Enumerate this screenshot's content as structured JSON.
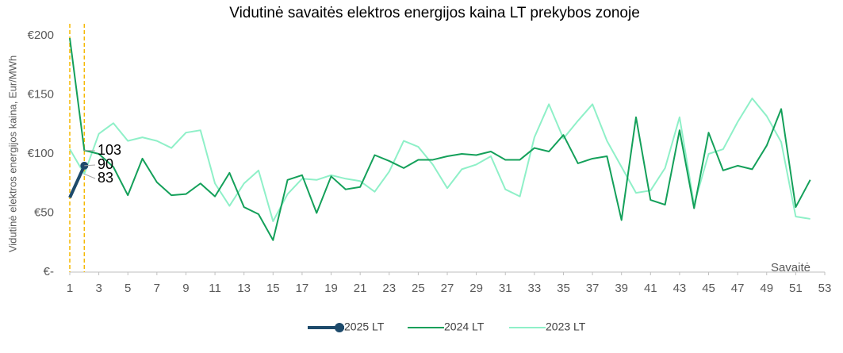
{
  "chart_data": {
    "type": "line",
    "title": "Vidutinė savaitės elektros energijos kaina LT prekybos zonoje",
    "y_label": "Vidutinė elektros energijos kaina, Eur/MWh",
    "x_label": "Savaitė",
    "x": [
      1,
      2,
      3,
      4,
      5,
      6,
      7,
      8,
      9,
      10,
      11,
      12,
      13,
      14,
      15,
      16,
      17,
      18,
      19,
      20,
      21,
      22,
      23,
      24,
      25,
      26,
      27,
      28,
      29,
      30,
      31,
      32,
      33,
      34,
      35,
      36,
      37,
      38,
      39,
      40,
      41,
      42,
      43,
      44,
      45,
      46,
      47,
      48,
      49,
      50,
      51,
      52
    ],
    "xlim": [
      1,
      53
    ],
    "xticks": [
      1,
      3,
      5,
      7,
      9,
      11,
      13,
      15,
      17,
      19,
      21,
      23,
      25,
      27,
      29,
      31,
      33,
      35,
      37,
      39,
      41,
      43,
      45,
      47,
      49,
      51,
      53
    ],
    "ylim": [
      0,
      200
    ],
    "yticks": [
      {
        "value": 0,
        "label": "€-"
      },
      {
        "value": 50,
        "label": "€50"
      },
      {
        "value": 100,
        "label": "€100"
      },
      {
        "value": 150,
        "label": "€150"
      },
      {
        "value": 200,
        "label": "€200"
      }
    ],
    "reference_lines_x": [
      1,
      2
    ],
    "reference_color": "#f5b800",
    "series": [
      {
        "name": "2025 LT",
        "color": "#1d4a6b",
        "values": [
          63,
          90,
          null,
          null,
          null,
          null,
          null,
          null,
          null,
          null,
          null,
          null,
          null,
          null,
          null,
          null,
          null,
          null,
          null,
          null,
          null,
          null,
          null,
          null,
          null,
          null,
          null,
          null,
          null,
          null,
          null,
          null,
          null,
          null,
          null,
          null,
          null,
          null,
          null,
          null,
          null,
          null,
          null,
          null,
          null,
          null,
          null,
          null,
          null,
          null,
          null,
          null
        ]
      },
      {
        "name": "2024 LT",
        "color": "#14a05a",
        "values": [
          198,
          103,
          100,
          89,
          65,
          96,
          76,
          65,
          66,
          75,
          64,
          84,
          55,
          49,
          27,
          78,
          82,
          50,
          81,
          70,
          72,
          99,
          94,
          88,
          95,
          95,
          98,
          100,
          99,
          102,
          95,
          95,
          105,
          102,
          116,
          92,
          96,
          98,
          44,
          131,
          61,
          57,
          120,
          54,
          118,
          86,
          90,
          87,
          107,
          138,
          55,
          78
        ]
      },
      {
        "name": "2023 LT",
        "color": "#8ff0c8",
        "values": [
          104,
          83,
          117,
          126,
          111,
          114,
          111,
          105,
          118,
          120,
          75,
          56,
          75,
          86,
          43,
          66,
          79,
          78,
          82,
          79,
          77,
          68,
          85,
          111,
          106,
          91,
          71,
          87,
          91,
          98,
          70,
          64,
          114,
          142,
          113,
          128,
          142,
          111,
          89,
          67,
          69,
          88,
          131,
          57,
          100,
          104,
          127,
          147,
          132,
          110,
          47,
          45
        ]
      }
    ]
  }
}
